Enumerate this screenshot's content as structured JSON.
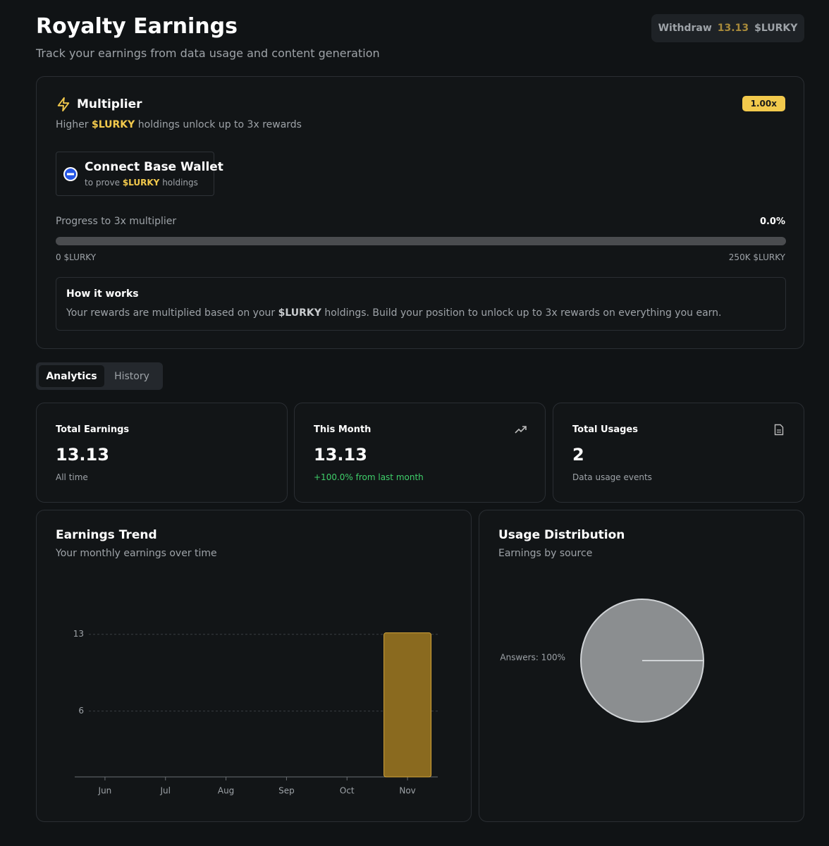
{
  "header": {
    "title": "Royalty Earnings",
    "subtitle": "Track your earnings from data usage and content generation",
    "withdraw": {
      "label": "Withdraw",
      "amount": "13.13",
      "unit": "$LURKY"
    }
  },
  "multiplier": {
    "title": "Multiplier",
    "badge": "1.00x",
    "desc_before": "Higher",
    "token": "$LURKY",
    "desc_after": "holdings unlock up to 3x rewards",
    "wallet": {
      "title": "Connect Base Wallet",
      "sub_before": "to prove",
      "token": "$LURKY",
      "sub_after": "holdings"
    },
    "progress": {
      "label": "Progress to 3x multiplier",
      "percent": "0.0%",
      "min_label": "0 $LURKY",
      "max_label": "250K $LURKY"
    },
    "how": {
      "title": "How it works",
      "text_before": "Your rewards are multiplied based on your",
      "token": "$LURKY",
      "text_after": "holdings. Build your position to unlock up to 3x rewards on everything you earn."
    }
  },
  "tabs": [
    "Analytics",
    "History"
  ],
  "stats": [
    {
      "label": "Total Earnings",
      "value": "13.13",
      "note": "All time"
    },
    {
      "label": "This Month",
      "value": "13.13",
      "note": "+100.0% from last month"
    },
    {
      "label": "Total Usages",
      "value": "2",
      "note": "Data usage events"
    }
  ],
  "chart_data": [
    {
      "type": "bar",
      "title": "Earnings Trend",
      "subtitle": "Your monthly earnings over time",
      "categories": [
        "Jun",
        "Jul",
        "Aug",
        "Sep",
        "Oct",
        "Nov"
      ],
      "values": [
        0,
        0,
        0,
        0,
        0,
        13.13
      ],
      "color": "#8a6a1f",
      "ylim": [
        0,
        16
      ],
      "yticks": [
        6,
        13
      ],
      "grid": true
    },
    {
      "type": "pie",
      "title": "Usage Distribution",
      "subtitle": "Earnings by source",
      "values": [
        100
      ],
      "value_labels": [
        "Answers: 100%"
      ],
      "color": "#8b8e90"
    }
  ]
}
